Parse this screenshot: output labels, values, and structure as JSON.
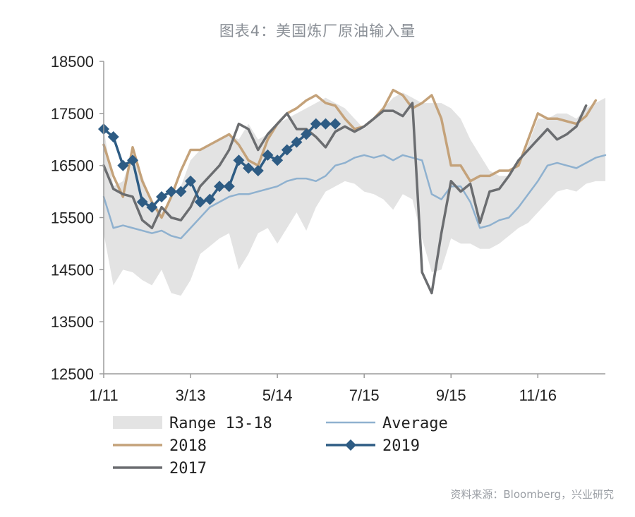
{
  "title": "图表4：美国炼厂原油输入量",
  "source": "资料来源：Bloomberg，兴业研究",
  "chart_data": {
    "type": "line",
    "title": "图表4：美国炼厂原油输入量",
    "ylim": [
      12500,
      18500
    ],
    "yticks": [
      12500,
      13500,
      14500,
      15500,
      16500,
      17500,
      18500
    ],
    "xlim": [
      1,
      53
    ],
    "xticks": [
      {
        "week": 1,
        "label": "1/11"
      },
      {
        "week": 10,
        "label": "3/13"
      },
      {
        "week": 19,
        "label": "5/14"
      },
      {
        "week": 28,
        "label": "7/15"
      },
      {
        "week": 37,
        "label": "9/15"
      },
      {
        "week": 46,
        "label": "11/16"
      }
    ],
    "grid": false,
    "legend": [
      "Range 13-18",
      "Average",
      "2018",
      "2019",
      "2017"
    ],
    "weeks": [
      1,
      2,
      3,
      4,
      5,
      6,
      7,
      8,
      9,
      10,
      11,
      12,
      13,
      14,
      15,
      16,
      17,
      18,
      19,
      20,
      21,
      22,
      23,
      24,
      25,
      26,
      27,
      28,
      29,
      30,
      31,
      32,
      33,
      34,
      35,
      36,
      37,
      38,
      39,
      40,
      41,
      42,
      43,
      44,
      45,
      46,
      47,
      48,
      49,
      50,
      51,
      52,
      53
    ],
    "range_low": [
      15200,
      14200,
      14500,
      14450,
      14300,
      14200,
      14500,
      14050,
      14000,
      14300,
      14800,
      14950,
      15100,
      15200,
      14500,
      14800,
      15200,
      15300,
      15000,
      15300,
      15600,
      15250,
      15700,
      16000,
      16100,
      16200,
      16150,
      16000,
      15950,
      15850,
      15650,
      15950,
      15850,
      15100,
      14450,
      14500,
      15100,
      15000,
      15000,
      14900,
      14900,
      15000,
      15150,
      15300,
      15400,
      15600,
      15800,
      16000,
      16050,
      16000,
      16150,
      16200,
      16200
    ],
    "range_high": [
      17200,
      16100,
      16200,
      16700,
      16300,
      15800,
      15600,
      15900,
      16100,
      16600,
      16800,
      16900,
      17000,
      17100,
      17000,
      17300,
      17000,
      17100,
      17300,
      17400,
      17500,
      17600,
      17700,
      17800,
      17700,
      17600,
      17400,
      17200,
      17400,
      17600,
      17800,
      17900,
      17800,
      17700,
      17700,
      17700,
      17600,
      17400,
      17000,
      16700,
      16400,
      16300,
      16300,
      16500,
      16900,
      17400,
      17400,
      17500,
      17500,
      17400,
      17600,
      17700,
      17800
    ],
    "series": [
      {
        "name": "Average",
        "color": "#8fb1cf",
        "values": [
          15900,
          15300,
          15350,
          15300,
          15250,
          15200,
          15250,
          15150,
          15100,
          15300,
          15500,
          15700,
          15800,
          15900,
          15950,
          15950,
          16000,
          16050,
          16100,
          16200,
          16250,
          16250,
          16200,
          16300,
          16500,
          16550,
          16650,
          16700,
          16650,
          16700,
          16600,
          16700,
          16650,
          16600,
          15950,
          15850,
          16100,
          16100,
          15800,
          15300,
          15350,
          15450,
          15500,
          15700,
          15950,
          16200,
          16500,
          16550,
          16500,
          16450,
          16550,
          16650,
          16700
        ]
      },
      {
        "name": "2018",
        "color": "#c4a27a",
        "values": [
          16900,
          16300,
          15900,
          16850,
          16200,
          15800,
          15500,
          15900,
          16400,
          16800,
          16800,
          16900,
          17000,
          17100,
          16900,
          16600,
          16500,
          17000,
          17300,
          17500,
          17600,
          17750,
          17850,
          17700,
          17650,
          17400,
          17200,
          17250,
          17400,
          17600,
          17950,
          17850,
          17600,
          17700,
          17850,
          17400,
          16500,
          16500,
          16200,
          16300,
          16300,
          16400,
          16400,
          16500,
          17000,
          17500,
          17400,
          17400,
          17350,
          17300,
          17450,
          17750
        ]
      },
      {
        "name": "2017",
        "color": "#6b6d70",
        "values": [
          16500,
          16050,
          15950,
          15900,
          15450,
          15300,
          15700,
          15500,
          15450,
          15700,
          16100,
          16300,
          16500,
          16800,
          17300,
          17200,
          16800,
          17100,
          17300,
          17500,
          17200,
          17200,
          17050,
          16850,
          17150,
          17250,
          17150,
          17250,
          17400,
          17550,
          17550,
          17450,
          17700,
          14450,
          14050,
          15200,
          16200,
          16000,
          16150,
          15400,
          16000,
          16050,
          16300,
          16600,
          16800,
          17000,
          17200,
          17000,
          17100,
          17250,
          17650
        ]
      },
      {
        "name": "2019",
        "color": "#2e5c84",
        "values": [
          17200,
          17050,
          16500,
          16600,
          15800,
          15700,
          15900,
          16000,
          16000,
          16200,
          15800,
          15850,
          16100,
          16100,
          16600,
          16450,
          16400,
          16700,
          16600,
          16800,
          16950,
          17100,
          17300,
          17300,
          17300
        ]
      }
    ]
  }
}
